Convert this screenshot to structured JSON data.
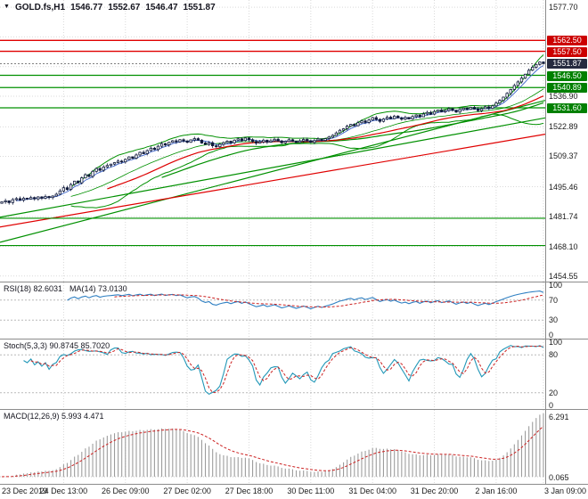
{
  "title": {
    "symbol": "GOLD.fs,H1",
    "open": "1546.77",
    "high": "1552.67",
    "low": "1546.47",
    "close": "1551.87"
  },
  "colors": {
    "background": "#ffffff",
    "grid": "#d9d9d9",
    "frame": "#8c8c8c",
    "candle_up": "#ffffff",
    "candle_down": "#101a3c",
    "candle_outline": "#101a3c",
    "level_red": "#e00000",
    "level_green": "#009000",
    "badge_red": "#cc0000",
    "badge_green": "#008000",
    "badge_current": "#262a3f",
    "ma_green": "#009000",
    "ma_red": "#dd0000",
    "ma_blue": "#3a62c9",
    "rsi_line": "#2e7fc2",
    "stoch_line": "#2398b8",
    "signal_line": "#cc2222",
    "histogram": "#9d9d9d",
    "bid_line": "#555555",
    "text": "#151515"
  },
  "chart_data": {
    "type": "candlestick",
    "symbol": "GOLD.fs",
    "timeframe": "H1",
    "main": {
      "price_range": [
        1452,
        1581
      ],
      "gridlines": [
        1577.7,
        1564.1,
        1550.5,
        1536.9,
        1522.89,
        1509.37,
        1495.46,
        1481.74,
        1468.1,
        1454.55
      ],
      "axis_labels": [
        {
          "text": "1577.70",
          "price": 1577.7
        },
        {
          "text": "1536.90",
          "price": 1536.9
        },
        {
          "text": "1522.89",
          "price": 1522.89
        },
        {
          "text": "1509.37",
          "price": 1509.37
        },
        {
          "text": "1495.46",
          "price": 1495.46
        },
        {
          "text": "1481.74",
          "price": 1481.74
        },
        {
          "text": "1468.10",
          "price": 1468.1
        },
        {
          "text": "1454.55",
          "price": 1454.55
        }
      ],
      "badges": [
        {
          "text": "1562.50",
          "price": 1562.5,
          "type": "red"
        },
        {
          "text": "1557.50",
          "price": 1557.5,
          "type": "red"
        },
        {
          "text": "1551.87",
          "price": 1551.87,
          "type": "current"
        },
        {
          "text": "1546.50",
          "price": 1546.5,
          "type": "green"
        },
        {
          "text": "1540.89",
          "price": 1540.89,
          "type": "green"
        },
        {
          "text": "1531.60",
          "price": 1531.6,
          "type": "green"
        }
      ],
      "levels": {
        "red": [
          1562.5,
          1557.5
        ],
        "green": [
          1546.5,
          1540.89,
          1531.6,
          1481.0,
          1468.5
        ]
      },
      "trendlines": [
        {
          "color": "green",
          "p1": 1481.5,
          "p2": 1527.0
        },
        {
          "color": "green",
          "p1": 1470.0,
          "p2": 1535.0
        },
        {
          "color": "red",
          "p1": 1477.0,
          "p2": 1519.5
        }
      ],
      "bid_price": 1551.87,
      "closes": [
        1488.5,
        1489.0,
        1488.2,
        1489.5,
        1490.0,
        1489.3,
        1490.2,
        1489.8,
        1490.5,
        1489.9,
        1490.8,
        1490.2,
        1491.0,
        1490.5,
        1491.2,
        1492.0,
        1493.5,
        1495.0,
        1494.2,
        1496.5,
        1498.0,
        1497.2,
        1499.5,
        1501.0,
        1500.2,
        1502.5,
        1503.8,
        1503.0,
        1504.5,
        1505.2,
        1505.8,
        1506.5,
        1507.2,
        1506.8,
        1508.0,
        1509.1,
        1508.5,
        1510.0,
        1511.2,
        1510.6,
        1512.0,
        1513.1,
        1512.5,
        1514.0,
        1515.2,
        1514.6,
        1515.8,
        1516.5,
        1516.0,
        1517.0,
        1516.4,
        1515.8,
        1516.9,
        1517.5,
        1516.8,
        1515.5,
        1514.8,
        1515.6,
        1514.2,
        1513.8,
        1514.9,
        1515.7,
        1516.3,
        1515.6,
        1516.8,
        1517.4,
        1516.6,
        1517.8,
        1517.0,
        1516.2,
        1515.4,
        1516.0,
        1516.8,
        1515.9,
        1516.5,
        1517.2,
        1516.4,
        1515.6,
        1516.2,
        1517.0,
        1516.3,
        1515.7,
        1516.4,
        1517.1,
        1516.5,
        1515.8,
        1516.6,
        1517.3,
        1516.7,
        1517.5,
        1518.2,
        1519.0,
        1520.1,
        1521.3,
        1522.0,
        1523.2,
        1524.0,
        1523.4,
        1524.8,
        1525.6,
        1524.9,
        1526.0,
        1527.1,
        1526.3,
        1525.4,
        1526.5,
        1527.3,
        1526.6,
        1527.8,
        1527.0,
        1526.4,
        1527.2,
        1526.5,
        1527.6,
        1528.3,
        1527.5,
        1528.8,
        1529.5,
        1528.7,
        1529.9,
        1530.6,
        1529.8,
        1530.4,
        1531.2,
        1530.5,
        1529.7,
        1530.8,
        1531.5,
        1530.9,
        1531.8,
        1531.0,
        1530.3,
        1531.2,
        1532.0,
        1531.4,
        1532.5,
        1533.8,
        1535.0,
        1536.5,
        1538.2,
        1540.0,
        1541.8,
        1543.5,
        1545.2,
        1547.0,
        1548.8,
        1550.2,
        1551.5,
        1552.6,
        1551.87
      ]
    },
    "rsi": {
      "label": "RSI(18) 82.6031",
      "label2": "MA(14) 73.0130",
      "period": 18,
      "ma_period": 14,
      "levels": [
        70,
        30
      ],
      "axis_labels": [
        "100",
        "70",
        "30",
        "0"
      ]
    },
    "stoch": {
      "label": "Stoch(5,3,3) 90.8745 85.7020",
      "k_period": 5,
      "slowing": 3,
      "d_period": 3,
      "levels": [
        80,
        20
      ],
      "axis_labels": [
        "100",
        "80",
        "20",
        "0"
      ]
    },
    "macd": {
      "label": "MACD(12,26,9) 5.993 4.471",
      "fast": 12,
      "slow": 26,
      "signal": 9,
      "axis_top": "6.291",
      "axis_bottom": "0.065"
    },
    "time_labels": [
      {
        "text": "23 Dec 2019",
        "i": 0
      },
      {
        "text": "24 Dec 13:00",
        "i": 17
      },
      {
        "text": "26 Dec 09:00",
        "i": 34
      },
      {
        "text": "27 Dec 02:00",
        "i": 51
      },
      {
        "text": "27 Dec 18:00",
        "i": 68
      },
      {
        "text": "30 Dec 11:00",
        "i": 85
      },
      {
        "text": "31 Dec 04:00",
        "i": 102
      },
      {
        "text": "31 Dec 20:00",
        "i": 119
      },
      {
        "text": "2 Jan 16:00",
        "i": 136
      },
      {
        "text": "3 Jan 09:00",
        "i": 149
      }
    ]
  }
}
